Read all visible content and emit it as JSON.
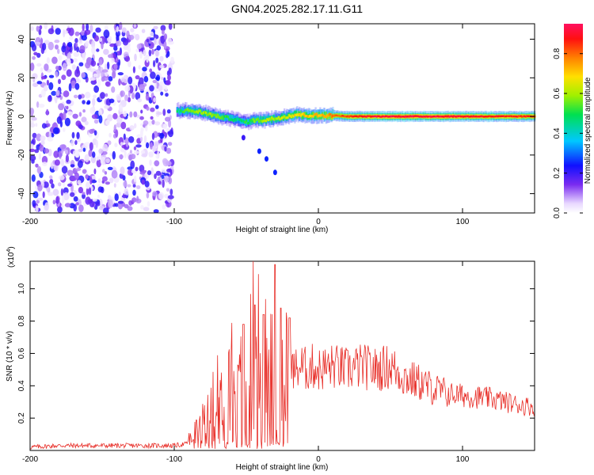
{
  "title": "GN04.2025.282.17.11.G11",
  "chart_data": [
    {
      "type": "heatmap",
      "xlabel": "Height of straight line (km)",
      "ylabel": "Frequency (Hz)",
      "xlim": [
        -200,
        150
      ],
      "ylim": [
        -50,
        48
      ],
      "xticks": [
        -200,
        -100,
        0,
        100
      ],
      "yticks": [
        -40,
        -20,
        0,
        20,
        40
      ],
      "colorbar": {
        "label": "Normalized spectral amplitude",
        "range": [
          0,
          0.95
        ],
        "ticks": [
          0.0,
          0.2,
          0.4,
          0.6,
          0.8
        ],
        "tick_labels": [
          "0.0",
          "0.2",
          "0.4",
          "0.6",
          "0.8"
        ]
      },
      "noise_region": {
        "x": [
          -200,
          -100
        ],
        "frequency": [
          -50,
          48
        ],
        "amplitude": [
          0.02,
          0.25
        ]
      },
      "signal_track": [
        {
          "x": -98,
          "frequency": 3.0,
          "amplitude": 0.45
        },
        {
          "x": -90,
          "frequency": 3.0,
          "amplitude": 0.55
        },
        {
          "x": -80,
          "frequency": 2.0,
          "amplitude": 0.6
        },
        {
          "x": -70,
          "frequency": 0.0,
          "amplitude": 0.55
        },
        {
          "x": -62,
          "frequency": -1.0,
          "amplitude": 0.5
        },
        {
          "x": -55,
          "frequency": -2.0,
          "amplitude": 0.45
        },
        {
          "x": -50,
          "frequency": -3.0,
          "amplitude": 0.5
        },
        {
          "x": -45,
          "frequency": -2.0,
          "amplitude": 0.55
        },
        {
          "x": -38,
          "frequency": -2.0,
          "amplitude": 0.6
        },
        {
          "x": -30,
          "frequency": -1.0,
          "amplitude": 0.6
        },
        {
          "x": -22,
          "frequency": 0.0,
          "amplitude": 0.65
        },
        {
          "x": -15,
          "frequency": 1.0,
          "amplitude": 0.7
        },
        {
          "x": -8,
          "frequency": 0.5,
          "amplitude": 0.7
        },
        {
          "x": 0,
          "frequency": 0.5,
          "amplitude": 0.72
        },
        {
          "x": 10,
          "frequency": 0.5,
          "amplitude": 0.78
        },
        {
          "x": 20,
          "frequency": 0.0,
          "amplitude": 0.85
        },
        {
          "x": 40,
          "frequency": 0.0,
          "amplitude": 0.9
        },
        {
          "x": 60,
          "frequency": 0.0,
          "amplitude": 0.92
        },
        {
          "x": 80,
          "frequency": 0.0,
          "amplitude": 0.92
        },
        {
          "x": 100,
          "frequency": 0.0,
          "amplitude": 0.9
        },
        {
          "x": 120,
          "frequency": 0.0,
          "amplitude": 0.88
        },
        {
          "x": 150,
          "frequency": 0.0,
          "amplitude": 0.85
        }
      ],
      "outlier_points": [
        {
          "x": -52,
          "frequency": -11.0,
          "amplitude": 0.2
        },
        {
          "x": -41,
          "frequency": -18.0,
          "amplitude": 0.25
        },
        {
          "x": -36,
          "frequency": -22.0,
          "amplitude": 0.25
        },
        {
          "x": -30,
          "frequency": -29.0,
          "amplitude": 0.25
        }
      ]
    },
    {
      "type": "line",
      "xlabel": "Height of straight line (km)",
      "ylabel": "SNR (10 * v/v)",
      "exponent_label": "(x10",
      "exponent": "4",
      "xlim": [
        -200,
        150
      ],
      "ylim": [
        0,
        1.17
      ],
      "xticks": [
        -200,
        -100,
        0,
        100
      ],
      "yticks": [
        0.2,
        0.4,
        0.6,
        0.8,
        1.0
      ],
      "ytick_labels": [
        "0.2",
        "0.4",
        "0.6",
        "0.8",
        "1.0"
      ],
      "series": [
        {
          "color": "#e8302a",
          "x": [
            -200,
            -180,
            -160,
            -140,
            -120,
            -100,
            -92,
            -88,
            -84,
            -80,
            -76,
            -72,
            -68,
            -64,
            -60,
            -56,
            -52,
            -48,
            -44,
            -40,
            -36,
            -32,
            -28,
            -24,
            -20,
            -16,
            -12,
            -8,
            -4,
            0,
            10,
            20,
            30,
            40,
            50,
            60,
            70,
            80,
            90,
            100,
            110,
            120,
            130,
            140,
            150
          ],
          "y": [
            0.02,
            0.03,
            0.03,
            0.03,
            0.03,
            0.03,
            0.04,
            0.08,
            0.12,
            0.16,
            0.25,
            0.4,
            0.32,
            0.45,
            0.55,
            0.3,
            0.48,
            0.7,
            0.65,
            0.6,
            0.55,
            0.6,
            0.5,
            0.55,
            0.5,
            0.5,
            0.52,
            0.5,
            0.52,
            0.5,
            0.52,
            0.5,
            0.52,
            0.5,
            0.52,
            0.45,
            0.42,
            0.38,
            0.35,
            0.34,
            0.33,
            0.32,
            0.3,
            0.28,
            0.27
          ],
          "peaks": [
            {
              "x": -52,
              "y": 0.78
            },
            {
              "x": -44,
              "y": 0.9
            },
            {
              "x": -38,
              "y": 0.84
            },
            {
              "x": -30,
              "y": 1.15
            },
            {
              "x": -26,
              "y": 0.88
            },
            {
              "x": -20,
              "y": 0.82
            }
          ]
        }
      ]
    }
  ]
}
